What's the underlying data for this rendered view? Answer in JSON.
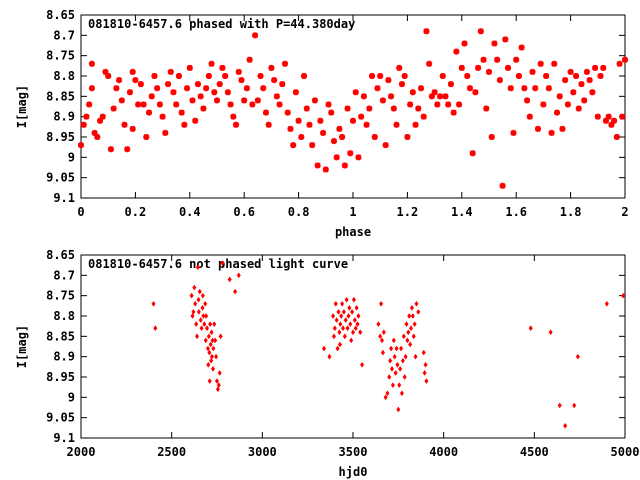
{
  "colors": {
    "data": "#ff0000",
    "axis": "#000000",
    "background": "#ffffff"
  },
  "chart_data": [
    {
      "type": "scatter",
      "title": "081810-6457.6 phased with P=44.380day",
      "xlabel": "phase",
      "ylabel": "I[mag]",
      "xlim": [
        0,
        2
      ],
      "ylim": [
        9.1,
        8.65
      ],
      "y_inverted": true,
      "grid": false,
      "marker": "asterisk",
      "xticks": [
        "0",
        "0.2",
        "0.4",
        "0.6",
        "0.8",
        "1",
        "1.2",
        "1.4",
        "1.6",
        "1.8",
        "2"
      ],
      "yticks": [
        "8.65",
        "8.7",
        "8.75",
        "8.8",
        "8.85",
        "8.9",
        "8.95",
        "9",
        "9.05",
        "9.1"
      ],
      "points": [
        [
          0.0,
          8.97
        ],
        [
          0.01,
          8.92
        ],
        [
          0.02,
          8.9
        ],
        [
          0.03,
          8.87
        ],
        [
          0.04,
          8.83
        ],
        [
          0.04,
          8.77
        ],
        [
          0.05,
          8.94
        ],
        [
          0.06,
          8.95
        ],
        [
          0.07,
          8.91
        ],
        [
          0.08,
          8.9
        ],
        [
          0.09,
          8.79
        ],
        [
          0.1,
          8.8
        ],
        [
          0.11,
          8.98
        ],
        [
          0.12,
          8.88
        ],
        [
          0.13,
          8.83
        ],
        [
          0.14,
          8.81
        ],
        [
          0.15,
          8.86
        ],
        [
          0.16,
          8.92
        ],
        [
          0.17,
          8.98
        ],
        [
          0.18,
          8.84
        ],
        [
          0.19,
          8.79
        ],
        [
          0.19,
          8.93
        ],
        [
          0.2,
          8.81
        ],
        [
          0.21,
          8.87
        ],
        [
          0.22,
          8.82
        ],
        [
          0.23,
          8.87
        ],
        [
          0.24,
          8.95
        ],
        [
          0.25,
          8.89
        ],
        [
          0.26,
          8.85
        ],
        [
          0.27,
          8.8
        ],
        [
          0.28,
          8.83
        ],
        [
          0.29,
          8.87
        ],
        [
          0.3,
          8.9
        ],
        [
          0.31,
          8.94
        ],
        [
          0.32,
          8.82
        ],
        [
          0.33,
          8.79
        ],
        [
          0.34,
          8.84
        ],
        [
          0.35,
          8.87
        ],
        [
          0.36,
          8.8
        ],
        [
          0.37,
          8.89
        ],
        [
          0.38,
          8.92
        ],
        [
          0.39,
          8.83
        ],
        [
          0.4,
          8.78
        ],
        [
          0.41,
          8.86
        ],
        [
          0.42,
          8.91
        ],
        [
          0.43,
          8.82
        ],
        [
          0.44,
          8.85
        ],
        [
          0.45,
          8.88
        ],
        [
          0.46,
          8.83
        ],
        [
          0.47,
          8.8
        ],
        [
          0.48,
          8.77
        ],
        [
          0.49,
          8.84
        ],
        [
          0.5,
          8.86
        ],
        [
          0.51,
          8.82
        ],
        [
          0.52,
          8.78
        ],
        [
          0.53,
          8.8
        ],
        [
          0.54,
          8.84
        ],
        [
          0.55,
          8.87
        ],
        [
          0.56,
          8.9
        ],
        [
          0.57,
          8.92
        ],
        [
          0.58,
          8.79
        ],
        [
          0.59,
          8.81
        ],
        [
          0.6,
          8.86
        ],
        [
          0.61,
          8.83
        ],
        [
          0.62,
          8.76
        ],
        [
          0.63,
          8.87
        ],
        [
          0.64,
          8.7
        ],
        [
          0.65,
          8.86
        ],
        [
          0.66,
          8.8
        ],
        [
          0.67,
          8.83
        ],
        [
          0.68,
          8.89
        ],
        [
          0.69,
          8.92
        ],
        [
          0.7,
          8.78
        ],
        [
          0.71,
          8.81
        ],
        [
          0.72,
          8.85
        ],
        [
          0.73,
          8.87
        ],
        [
          0.74,
          8.82
        ],
        [
          0.75,
          8.77
        ],
        [
          0.76,
          8.89
        ],
        [
          0.77,
          8.93
        ],
        [
          0.78,
          8.97
        ],
        [
          0.79,
          8.84
        ],
        [
          0.8,
          8.91
        ],
        [
          0.81,
          8.95
        ],
        [
          0.82,
          8.8
        ],
        [
          0.83,
          8.88
        ],
        [
          0.84,
          8.92
        ],
        [
          0.85,
          8.97
        ],
        [
          0.86,
          8.86
        ],
        [
          0.87,
          9.02
        ],
        [
          0.88,
          8.91
        ],
        [
          0.89,
          8.94
        ],
        [
          0.9,
          9.03
        ],
        [
          0.91,
          8.87
        ],
        [
          0.92,
          8.89
        ],
        [
          0.93,
          8.96
        ],
        [
          0.94,
          9.0
        ],
        [
          0.95,
          8.93
        ],
        [
          0.96,
          8.95
        ],
        [
          0.97,
          9.02
        ],
        [
          0.98,
          8.88
        ],
        [
          0.99,
          8.99
        ],
        [
          1.0,
          8.91
        ],
        [
          1.01,
          8.84
        ],
        [
          1.02,
          9.0
        ],
        [
          1.03,
          8.9
        ],
        [
          1.04,
          8.85
        ],
        [
          1.05,
          8.92
        ],
        [
          1.06,
          8.88
        ],
        [
          1.07,
          8.8
        ],
        [
          1.08,
          8.95
        ],
        [
          1.09,
          8.83
        ],
        [
          1.1,
          8.8
        ],
        [
          1.11,
          8.86
        ],
        [
          1.12,
          8.97
        ],
        [
          1.13,
          8.81
        ],
        [
          1.14,
          8.85
        ],
        [
          1.15,
          8.88
        ],
        [
          1.16,
          8.92
        ],
        [
          1.17,
          8.78
        ],
        [
          1.18,
          8.82
        ],
        [
          1.19,
          8.8
        ],
        [
          1.2,
          8.95
        ],
        [
          1.21,
          8.87
        ],
        [
          1.22,
          8.84
        ],
        [
          1.23,
          8.92
        ],
        [
          1.24,
          8.88
        ],
        [
          1.25,
          8.83
        ],
        [
          1.26,
          8.9
        ],
        [
          1.27,
          8.69
        ],
        [
          1.28,
          8.77
        ],
        [
          1.29,
          8.85
        ],
        [
          1.3,
          8.84
        ],
        [
          1.31,
          8.87
        ],
        [
          1.32,
          8.85
        ],
        [
          1.33,
          8.8
        ],
        [
          1.34,
          8.85
        ],
        [
          1.35,
          8.87
        ],
        [
          1.36,
          8.82
        ],
        [
          1.37,
          8.89
        ],
        [
          1.38,
          8.74
        ],
        [
          1.39,
          8.87
        ],
        [
          1.4,
          8.78
        ],
        [
          1.41,
          8.72
        ],
        [
          1.42,
          8.8
        ],
        [
          1.43,
          8.83
        ],
        [
          1.44,
          8.99
        ],
        [
          1.45,
          8.84
        ],
        [
          1.46,
          8.78
        ],
        [
          1.47,
          8.69
        ],
        [
          1.48,
          8.76
        ],
        [
          1.49,
          8.88
        ],
        [
          1.5,
          8.79
        ],
        [
          1.51,
          8.95
        ],
        [
          1.52,
          8.72
        ],
        [
          1.53,
          8.76
        ],
        [
          1.54,
          8.81
        ],
        [
          1.55,
          9.07
        ],
        [
          1.56,
          8.71
        ],
        [
          1.57,
          8.78
        ],
        [
          1.58,
          8.83
        ],
        [
          1.59,
          8.94
        ],
        [
          1.6,
          8.76
        ],
        [
          1.61,
          8.8
        ],
        [
          1.62,
          8.73
        ],
        [
          1.63,
          8.83
        ],
        [
          1.64,
          8.86
        ],
        [
          1.65,
          8.9
        ],
        [
          1.66,
          8.79
        ],
        [
          1.67,
          8.83
        ],
        [
          1.68,
          8.93
        ],
        [
          1.69,
          8.77
        ],
        [
          1.7,
          8.87
        ],
        [
          1.71,
          8.8
        ],
        [
          1.72,
          8.83
        ],
        [
          1.73,
          8.94
        ],
        [
          1.74,
          8.77
        ],
        [
          1.75,
          8.89
        ],
        [
          1.76,
          8.85
        ],
        [
          1.77,
          8.93
        ],
        [
          1.78,
          8.81
        ],
        [
          1.79,
          8.87
        ],
        [
          1.8,
          8.79
        ],
        [
          1.81,
          8.84
        ],
        [
          1.82,
          8.8
        ],
        [
          1.83,
          8.88
        ],
        [
          1.84,
          8.82
        ],
        [
          1.85,
          8.86
        ],
        [
          1.86,
          8.79
        ],
        [
          1.87,
          8.81
        ],
        [
          1.88,
          8.84
        ],
        [
          1.89,
          8.78
        ],
        [
          1.9,
          8.9
        ],
        [
          1.91,
          8.8
        ],
        [
          1.92,
          8.78
        ],
        [
          1.93,
          8.91
        ],
        [
          1.94,
          8.9
        ],
        [
          1.95,
          8.92
        ],
        [
          1.96,
          8.91
        ],
        [
          1.97,
          8.95
        ],
        [
          1.98,
          8.77
        ],
        [
          1.99,
          8.9
        ],
        [
          2.0,
          8.76
        ]
      ]
    },
    {
      "type": "scatter",
      "title": "081810-6457.6 not phased light curve",
      "xlabel": "hjd0",
      "ylabel": "I[mag]",
      "xlim": [
        2000,
        5000
      ],
      "ylim": [
        9.1,
        8.65
      ],
      "y_inverted": true,
      "grid": false,
      "marker": "diamond",
      "xticks": [
        "2000",
        "2500",
        "3000",
        "3500",
        "4000",
        "4500",
        "5000"
      ],
      "yticks": [
        "8.65",
        "8.7",
        "8.75",
        "8.8",
        "8.85",
        "8.9",
        "8.95",
        "9",
        "9.05",
        "9.1"
      ],
      "points": [
        [
          2400,
          8.77
        ],
        [
          2410,
          8.83
        ],
        [
          2610,
          8.75
        ],
        [
          2615,
          8.8
        ],
        [
          2620,
          8.79
        ],
        [
          2625,
          8.73
        ],
        [
          2630,
          8.77
        ],
        [
          2635,
          8.82
        ],
        [
          2640,
          8.85
        ],
        [
          2645,
          8.68
        ],
        [
          2648,
          8.76
        ],
        [
          2650,
          8.79
        ],
        [
          2655,
          8.74
        ],
        [
          2660,
          8.81
        ],
        [
          2665,
          8.83
        ],
        [
          2670,
          8.78
        ],
        [
          2672,
          8.75
        ],
        [
          2675,
          8.8
        ],
        [
          2680,
          8.82
        ],
        [
          2685,
          8.77
        ],
        [
          2688,
          8.86
        ],
        [
          2690,
          8.8
        ],
        [
          2695,
          8.83
        ],
        [
          2700,
          8.88
        ],
        [
          2702,
          8.92
        ],
        [
          2705,
          8.85
        ],
        [
          2708,
          8.89
        ],
        [
          2710,
          8.96
        ],
        [
          2712,
          8.82
        ],
        [
          2715,
          8.87
        ],
        [
          2718,
          8.91
        ],
        [
          2720,
          8.84
        ],
        [
          2722,
          8.9
        ],
        [
          2725,
          8.86
        ],
        [
          2728,
          8.93
        ],
        [
          2730,
          8.88
        ],
        [
          2735,
          8.82
        ],
        [
          2740,
          8.86
        ],
        [
          2745,
          8.9
        ],
        [
          2750,
          8.96
        ],
        [
          2755,
          8.98
        ],
        [
          2760,
          8.97
        ],
        [
          2765,
          8.94
        ],
        [
          2770,
          8.85
        ],
        [
          2780,
          8.67
        ],
        [
          2820,
          8.71
        ],
        [
          2850,
          8.74
        ],
        [
          2870,
          8.7
        ],
        [
          3340,
          8.88
        ],
        [
          3370,
          8.9
        ],
        [
          3390,
          8.8
        ],
        [
          3395,
          8.85
        ],
        [
          3400,
          8.83
        ],
        [
          3405,
          8.77
        ],
        [
          3410,
          8.81
        ],
        [
          3415,
          8.88
        ],
        [
          3420,
          8.79
        ],
        [
          3425,
          8.84
        ],
        [
          3428,
          8.87
        ],
        [
          3430,
          8.82
        ],
        [
          3435,
          8.8
        ],
        [
          3440,
          8.77
        ],
        [
          3445,
          8.83
        ],
        [
          3450,
          8.79
        ],
        [
          3455,
          8.85
        ],
        [
          3460,
          8.81
        ],
        [
          3465,
          8.76
        ],
        [
          3470,
          8.83
        ],
        [
          3475,
          8.8
        ],
        [
          3480,
          8.78
        ],
        [
          3485,
          8.82
        ],
        [
          3490,
          8.86
        ],
        [
          3495,
          8.79
        ],
        [
          3500,
          8.84
        ],
        [
          3505,
          8.76
        ],
        [
          3510,
          8.81
        ],
        [
          3515,
          8.83
        ],
        [
          3520,
          8.78
        ],
        [
          3525,
          8.82
        ],
        [
          3530,
          8.8
        ],
        [
          3540,
          8.84
        ],
        [
          3550,
          8.92
        ],
        [
          3640,
          8.82
        ],
        [
          3650,
          8.85
        ],
        [
          3655,
          8.77
        ],
        [
          3660,
          8.86
        ],
        [
          3665,
          8.89
        ],
        [
          3670,
          8.84
        ],
        [
          3680,
          9.0
        ],
        [
          3690,
          8.99
        ],
        [
          3700,
          8.95
        ],
        [
          3705,
          8.91
        ],
        [
          3710,
          8.88
        ],
        [
          3715,
          8.93
        ],
        [
          3720,
          8.97
        ],
        [
          3725,
          8.86
        ],
        [
          3730,
          8.9
        ],
        [
          3735,
          8.94
        ],
        [
          3740,
          8.88
        ],
        [
          3745,
          8.92
        ],
        [
          3750,
          9.03
        ],
        [
          3755,
          8.97
        ],
        [
          3760,
          8.93
        ],
        [
          3765,
          8.88
        ],
        [
          3770,
          8.99
        ],
        [
          3775,
          8.91
        ],
        [
          3780,
          8.85
        ],
        [
          3785,
          8.95
        ],
        [
          3790,
          8.9
        ],
        [
          3795,
          8.82
        ],
        [
          3800,
          8.86
        ],
        [
          3805,
          8.84
        ],
        [
          3810,
          8.8
        ],
        [
          3815,
          8.87
        ],
        [
          3820,
          8.83
        ],
        [
          3825,
          8.78
        ],
        [
          3830,
          8.8
        ],
        [
          3835,
          8.85
        ],
        [
          3840,
          8.82
        ],
        [
          3845,
          8.9
        ],
        [
          3850,
          8.77
        ],
        [
          3860,
          8.79
        ],
        [
          3890,
          8.89
        ],
        [
          3895,
          8.94
        ],
        [
          3900,
          8.92
        ],
        [
          3905,
          8.96
        ],
        [
          4480,
          8.83
        ],
        [
          4590,
          8.84
        ],
        [
          4640,
          9.02
        ],
        [
          4670,
          9.07
        ],
        [
          4720,
          9.02
        ],
        [
          4740,
          8.9
        ],
        [
          4900,
          8.77
        ],
        [
          4990,
          8.75
        ]
      ]
    }
  ]
}
